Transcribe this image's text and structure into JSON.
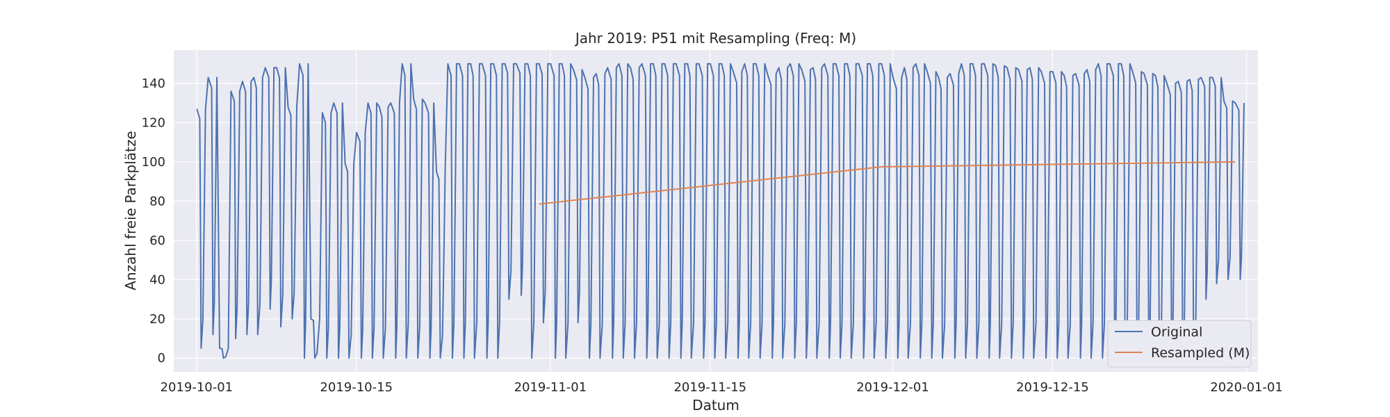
{
  "chart_data": {
    "type": "line",
    "title": "Jahr 2019: P51 mit Resampling (Freq: M)",
    "xlabel": "Datum",
    "ylabel": "Anzahl freie Parkplätze",
    "x_range": [
      "2019-09-29",
      "2020-01-02"
    ],
    "ylim": [
      -7,
      157
    ],
    "x_ticks": [
      "2019-10-01",
      "2019-10-15",
      "2019-11-01",
      "2019-11-15",
      "2019-12-01",
      "2019-12-15",
      "2020-01-01"
    ],
    "y_ticks": [
      0,
      20,
      40,
      60,
      80,
      100,
      120,
      140
    ],
    "grid": true,
    "legend_position": "lower-right",
    "colors": {
      "background": "#eaeaf2",
      "grid": "#ffffff",
      "original": "#4c72b0",
      "resampled": "#dd8452"
    },
    "series": [
      {
        "name": "Original",
        "kind": "daily-cycle",
        "start": "2019-10-01",
        "end": "2019-12-31",
        "daily_max": [
          127,
          143,
          5,
          136,
          141,
          143,
          148,
          148,
          128,
          150,
          20,
          125,
          130,
          99,
          115,
          130,
          128,
          130,
          150,
          132,
          130,
          95,
          150,
          150,
          150,
          150,
          150,
          150,
          150,
          150,
          150,
          150,
          150,
          147,
          143,
          145,
          148,
          150,
          148,
          150,
          150,
          150,
          150,
          150,
          150,
          150,
          150,
          146,
          150,
          150,
          145,
          148,
          150,
          147,
          148,
          150,
          150,
          150,
          150,
          150,
          150,
          143,
          148,
          150,
          146,
          143,
          145,
          150,
          150,
          150,
          149,
          148,
          147,
          148,
          146,
          146,
          144,
          145,
          147,
          150,
          150,
          150,
          146,
          145,
          144,
          140,
          141,
          142,
          143,
          143,
          131,
          130
        ],
        "daily_min": [
          5,
          12,
          0,
          10,
          12,
          12,
          25,
          16,
          20,
          0,
          0,
          0,
          0,
          0,
          0,
          0,
          0,
          0,
          0,
          0,
          0,
          0,
          0,
          0,
          0,
          0,
          0,
          30,
          32,
          0,
          18,
          0,
          0,
          18,
          0,
          0,
          0,
          0,
          0,
          0,
          0,
          0,
          0,
          0,
          0,
          0,
          0,
          0,
          0,
          0,
          0,
          0,
          0,
          0,
          0,
          0,
          0,
          0,
          0,
          0,
          0,
          0,
          0,
          0,
          0,
          0,
          0,
          0,
          0,
          0,
          0,
          0,
          0,
          0,
          0,
          0,
          0,
          0,
          0,
          0,
          0,
          0,
          0,
          0,
          0,
          0,
          0,
          0,
          30,
          38,
          40,
          40
        ]
      },
      {
        "name": "Resampled (M)",
        "x": [
          "2019-10-31",
          "2019-11-30",
          "2019-12-31"
        ],
        "values": [
          78.5,
          97.5,
          100.0
        ]
      }
    ]
  }
}
